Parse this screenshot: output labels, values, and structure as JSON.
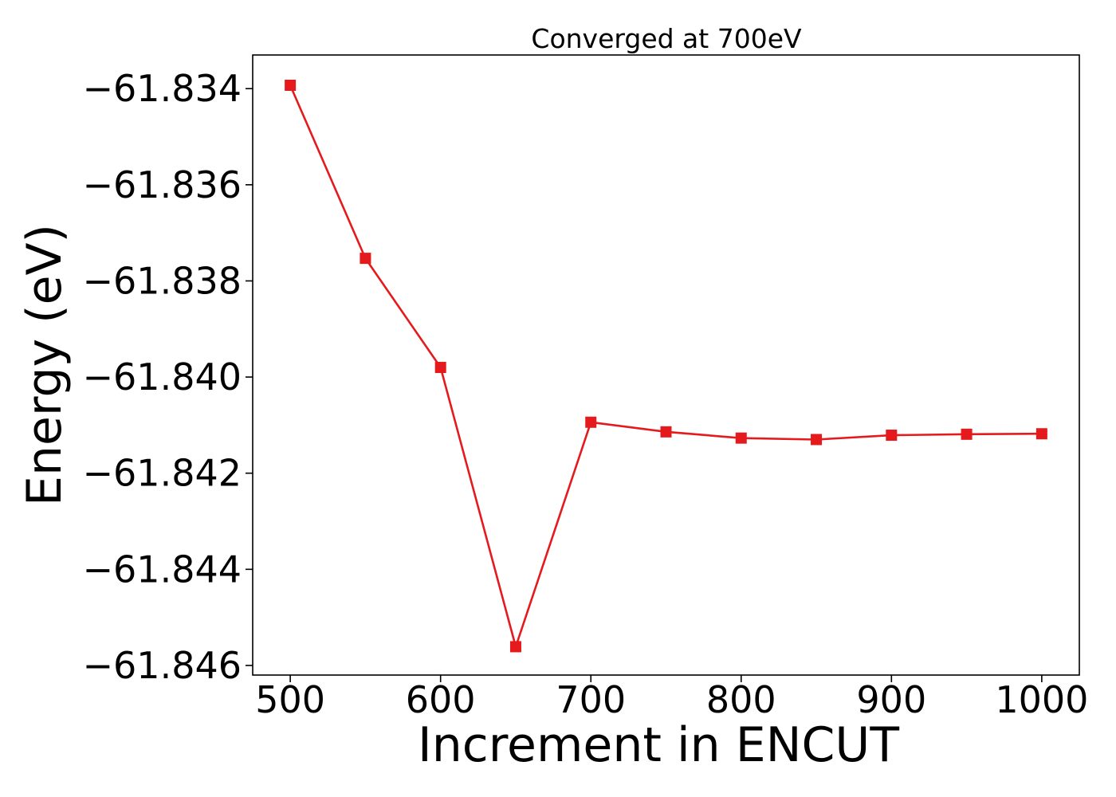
{
  "chart_data": {
    "type": "line",
    "title": "Converged at 700eV",
    "xlabel": "Increment in ENCUT",
    "ylabel": "Energy (eV)",
    "x": [
      500,
      550,
      600,
      650,
      700,
      750,
      800,
      850,
      900,
      950,
      1000
    ],
    "series": [
      {
        "values": [
          -61.83393,
          -61.83753,
          -61.8398,
          -61.84561,
          -61.84094,
          -61.84114,
          -61.84127,
          -61.8413,
          -61.84121,
          -61.84119,
          -61.84118
        ],
        "color": "#e41a1c",
        "marker": "square"
      }
    ],
    "xlim": [
      475,
      1025
    ],
    "ylim": [
      -61.8462,
      -61.8333
    ],
    "xticks": [
      500,
      600,
      700,
      800,
      900,
      1000
    ],
    "xtick_labels": [
      "500",
      "600",
      "700",
      "800",
      "900",
      "1000"
    ],
    "yticks": [
      -61.834,
      -61.836,
      -61.838,
      -61.84,
      -61.842,
      -61.844,
      -61.846
    ],
    "ytick_labels": [
      "−61.834",
      "−61.836",
      "−61.838",
      "−61.840",
      "−61.842",
      "−61.844",
      "−61.846"
    ],
    "grid": false,
    "legend": "none"
  }
}
